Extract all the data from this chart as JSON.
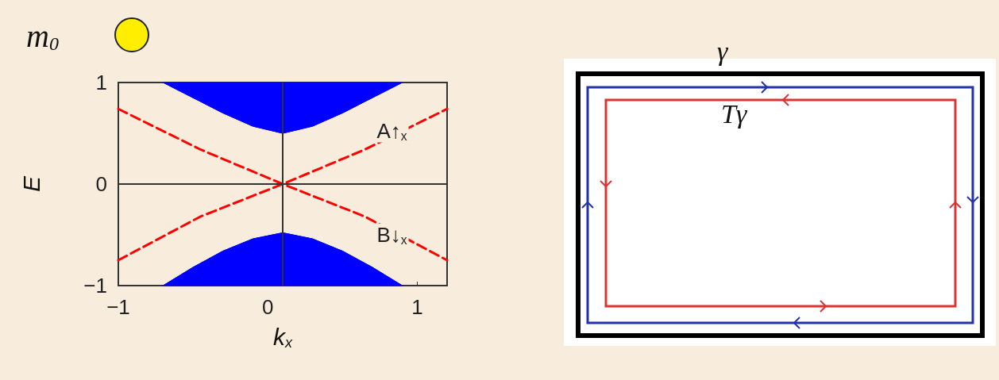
{
  "chart_data": {
    "type": "line",
    "title": "m$_{0}$",
    "xlabel": "k$_{x}$",
    "ylabel": "E",
    "xlim": [
      -1,
      1.2
    ],
    "ylim": [
      -1,
      1
    ],
    "xticks": [
      -1,
      0,
      1
    ],
    "yticks": [
      -1,
      0,
      1
    ],
    "grid": false,
    "line_style": "dashed",
    "series": [
      {
        "type": "area",
        "color": "#0000ff",
        "x": [
          -0.7,
          -0.5,
          -0.3,
          -0.1,
          0.1,
          0.3,
          0.5,
          0.7,
          0.9
        ],
        "values": [
          1,
          0.85,
          0.7,
          0.57,
          0.5,
          0.57,
          0.7,
          0.85,
          1
        ]
      },
      {
        "type": "area",
        "color": "#0000ff",
        "x": [
          -0.7,
          -0.5,
          -0.3,
          -0.1,
          0.1,
          0.3,
          0.5,
          0.7,
          0.9
        ],
        "values": [
          -1,
          -0.82,
          -0.66,
          -0.54,
          -0.48,
          -0.54,
          -0.66,
          -0.82,
          -1
        ]
      },
      {
        "name": "A↑$_{x}$",
        "color": "#ff0000",
        "x": [
          -1,
          -0.45,
          0.1,
          0.65,
          1.2
        ],
        "values": [
          -0.75,
          -0.32,
          0,
          0.34,
          0.74
        ]
      },
      {
        "name": "B↓$_{x}$",
        "color": "#ff0000",
        "x": [
          -1,
          -0.45,
          0.1,
          0.65,
          1.2
        ],
        "values": [
          0.74,
          0.34,
          0,
          -0.32,
          -0.75
        ]
      }
    ],
    "ref_lines": [
      {
        "axis": "x",
        "value": 0.1,
        "color": "#333333"
      },
      {
        "axis": "y",
        "value": 0,
        "color": "#333333"
      }
    ],
    "annotations": [
      "γ",
      "Tγ"
    ]
  }
}
